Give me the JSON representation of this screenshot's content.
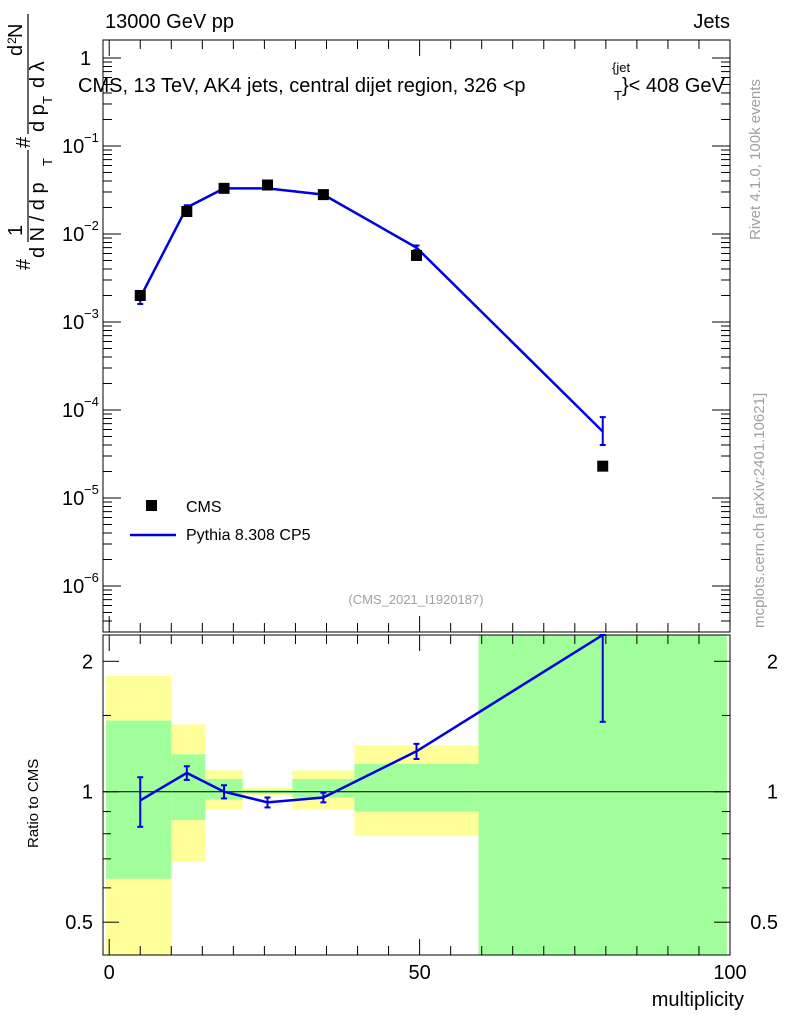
{
  "header": {
    "left": "13000 GeV pp",
    "right": "Jets",
    "title_main": "CMS, 13 TeV, AK4 jets, central dijet region, 326 <p",
    "title_sup": "{jet",
    "title_sub": "T",
    "title_end": "}< 408 GeV"
  },
  "side_labels": {
    "rivet": "Rivet 4.1.0,  100k events",
    "mcplots": "mcplots.cern.ch [arXiv:2401.10621]"
  },
  "watermark": "(CMS_2021_I1920187)",
  "legend": {
    "data_label": "CMS",
    "mc_label": "Pythia 8.308 CP5"
  },
  "colors": {
    "mc": "#0000e0",
    "band_inner": "#a0ff9a",
    "band_outer": "#ffff9a",
    "data": "#000000"
  },
  "ylabel_main": {
    "part1": "1",
    "part2": "N",
    "part3": "d N / d p",
    "part4": "T",
    "part5": "#",
    "part6": "d",
    "part7": "N",
    "part8": "d p",
    "part9": "T",
    "part10": "d λ",
    "part11": "#",
    "part12": "2"
  },
  "chart_data": [
    {
      "type": "scatter",
      "yscale": "log",
      "xlim": [
        -1,
        100
      ],
      "ylim": [
        3e-07,
        1.6
      ],
      "yticks": [
        {
          "value": 1,
          "base": "1",
          "exp": ""
        },
        {
          "value": 0.1,
          "base": "10",
          "exp": "−1"
        },
        {
          "value": 0.01,
          "base": "10",
          "exp": "−2"
        },
        {
          "value": 0.001,
          "base": "10",
          "exp": "−3"
        },
        {
          "value": 0.0001,
          "base": "10",
          "exp": "−4"
        },
        {
          "value": 1e-05,
          "base": "10",
          "exp": "−5"
        },
        {
          "value": 1e-06,
          "base": "10",
          "exp": "−6"
        }
      ],
      "series": [
        {
          "name": "CMS",
          "x": [
            5,
            12.5,
            18.5,
            25.5,
            34.5,
            49.5,
            79.5
          ],
          "values": [
            0.002,
            0.018,
            0.033,
            0.036,
            0.028,
            0.0057,
            2.3e-05
          ]
        },
        {
          "name": "Pythia 8.308 CP5",
          "x": [
            5,
            12.5,
            18.5,
            25.5,
            34.5,
            49.5,
            79.5
          ],
          "values": [
            0.0019,
            0.02,
            0.033,
            0.033,
            0.028,
            0.007,
            5.7e-05
          ],
          "err_lo": [
            0.0016,
            0.0188,
            0.0322,
            0.0325,
            0.0275,
            0.0066,
            4e-05
          ],
          "err_hi": [
            0.0022,
            0.0212,
            0.0338,
            0.0335,
            0.0285,
            0.0074,
            8.3e-05
          ]
        }
      ]
    },
    {
      "type": "line",
      "title": "",
      "xlabel": "multiplicity",
      "ylabel": "Ratio to CMS",
      "yscale": "log",
      "xlim": [
        -1,
        100
      ],
      "ylim": [
        0.42,
        2.3
      ],
      "xticks": [
        0,
        50,
        100
      ],
      "xtick_labels": [
        "0",
        "50",
        "100"
      ],
      "yticks": [
        0.5,
        1,
        2
      ],
      "ytick_labels": [
        "0.5",
        "1",
        "2"
      ],
      "bands": [
        {
          "x0": -0.5,
          "x1": 10,
          "inner": [
            0.63,
            1.46
          ],
          "outer": [
            0.35,
            1.85
          ]
        },
        {
          "x0": 10,
          "x1": 15.5,
          "inner": [
            0.86,
            1.22
          ],
          "outer": [
            0.69,
            1.43
          ]
        },
        {
          "x0": 15.5,
          "x1": 21.5,
          "inner": [
            0.96,
            1.07
          ],
          "outer": [
            0.91,
            1.12
          ]
        },
        {
          "x0": 21.5,
          "x1": 29.5,
          "inner": [
            0.99,
            1.01
          ],
          "outer": [
            0.98,
            1.02
          ]
        },
        {
          "x0": 29.5,
          "x1": 39.5,
          "inner": [
            0.97,
            1.07
          ],
          "outer": [
            0.91,
            1.12
          ]
        },
        {
          "x0": 39.5,
          "x1": 59.5,
          "inner": [
            0.9,
            1.16
          ],
          "outer": [
            0.79,
            1.28
          ]
        },
        {
          "x0": 59.5,
          "x1": 99.5,
          "inner": [
            0.35,
            2.3
          ],
          "outer": [
            0.35,
            2.3
          ]
        }
      ],
      "series": [
        {
          "name": "Pythia 8.308 CP5 / CMS",
          "x": [
            5,
            12.5,
            18.5,
            25.5,
            34.5,
            49.5,
            79.5
          ],
          "values": [
            0.955,
            1.105,
            1.0,
            0.945,
            0.97,
            1.24,
            2.3
          ],
          "err_lo": [
            0.83,
            1.065,
            0.965,
            0.92,
            0.945,
            1.19,
            1.45
          ],
          "err_hi": [
            1.08,
            1.145,
            1.035,
            0.97,
            0.995,
            1.29,
            2.3
          ]
        }
      ]
    }
  ]
}
